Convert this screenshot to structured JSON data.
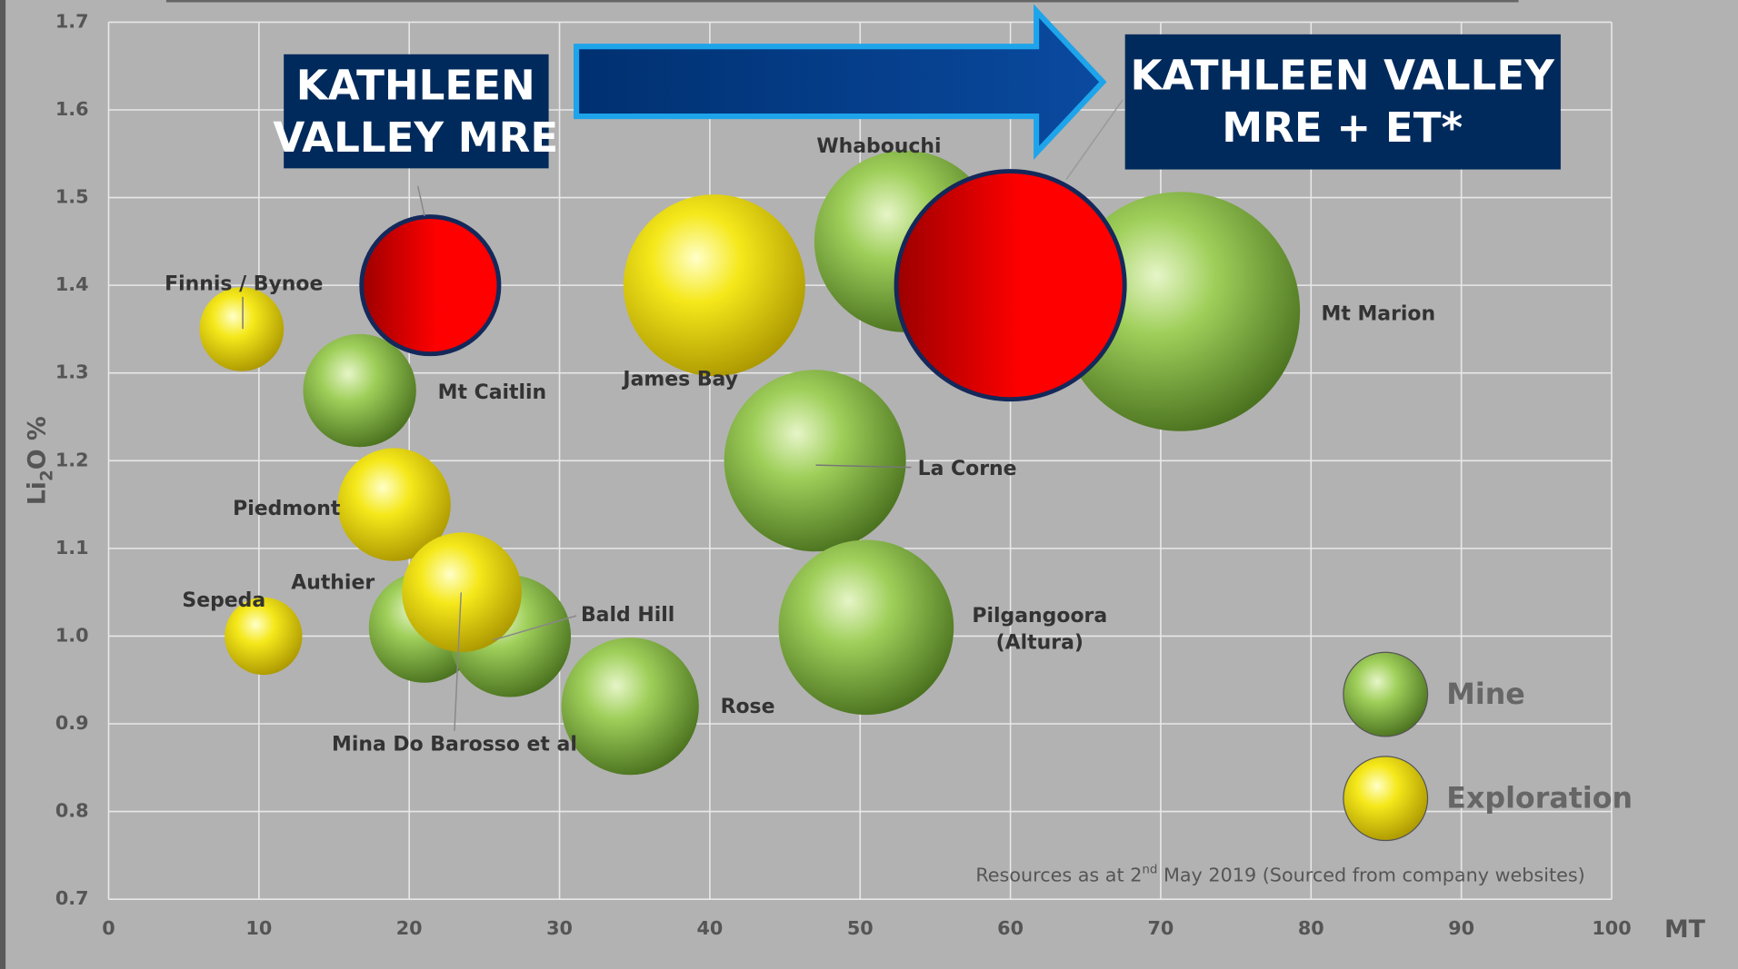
{
  "chart_data": {
    "type": "bubble",
    "x_label": "MT",
    "y_label_parts": [
      "Li",
      "2",
      "O %"
    ],
    "xlim": [
      0,
      100
    ],
    "xticks": [
      0,
      10,
      20,
      30,
      40,
      50,
      60,
      70,
      80,
      90,
      100
    ],
    "ylim": [
      0.7,
      1.7
    ],
    "yticks": [
      0.7,
      0.8,
      0.9,
      {
        "value": 1,
        "label": "1.0"
      },
      1.1,
      1.2,
      1.3,
      1.4,
      1.5,
      1.6,
      1.7
    ],
    "grid": true,
    "series": [
      {
        "name": "Mine",
        "color": "#5b8c2a",
        "labels": [
          [
            "Mt Caitlin"
          ],
          [
            "Authier"
          ],
          [
            "Bald Hill"
          ],
          [
            "Rose"
          ],
          [
            "Whabouchi"
          ],
          [
            "La Corne"
          ],
          [
            "Pilgangoora",
            "(Altura)"
          ],
          [
            "Mt Marion"
          ]
        ],
        "x": [
          16.7,
          21,
          26.7,
          34.7,
          53,
          47,
          50.4,
          71.3
        ],
        "values": [
          1.28,
          1.01,
          1.0,
          0.92,
          1.45,
          1.2,
          1.01,
          1.37
        ],
        "sizes": [
          5.1,
          5.0,
          5.5,
          6.2,
          8.2,
          8.2,
          7.9,
          10.8
        ]
      },
      {
        "name": "Exploration",
        "color": "#f0e000",
        "labels": [
          [
            "Finnis / Bynoe"
          ],
          [
            "Piedmont"
          ],
          [
            "Sepeda"
          ],
          [
            "Mina Do Barosso et al"
          ],
          [
            "James Bay"
          ]
        ],
        "x": [
          8.85,
          19,
          10.3,
          23.5,
          40.3
        ],
        "values": [
          1.35,
          1.15,
          1.0,
          1.05,
          1.4
        ],
        "sizes": [
          3.8,
          5.1,
          3.5,
          5.4,
          8.2
        ]
      }
    ],
    "highlights": {
      "color": "#ff0000",
      "labels": [
        [
          "KATHLEEN",
          "VALLEY MRE"
        ],
        [
          "KATHLEEN VALLEY",
          "MRE + ET*"
        ]
      ],
      "x": [
        21.4,
        60
      ],
      "values": [
        1.4,
        1.4
      ],
      "sizes": [
        6.2,
        10.3
      ]
    },
    "footnote_parts": [
      "Resources as at 2",
      "nd",
      " May 2019 (Sourced from company websites)"
    ]
  }
}
